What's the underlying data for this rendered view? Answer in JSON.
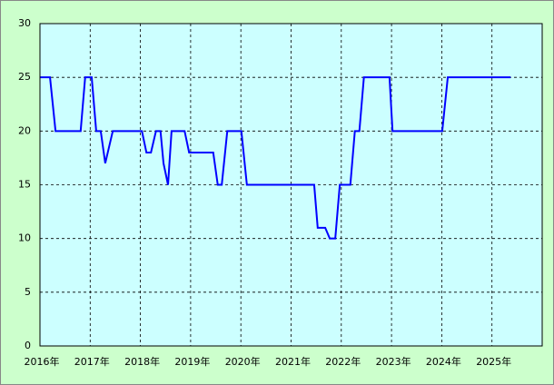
{
  "chart_data": {
    "type": "line",
    "x": [
      2016,
      2016.2,
      2016.31,
      2016.81,
      2016.9,
      2017.03,
      2017.12,
      2017.21,
      2017.3,
      2017.45,
      2018.03,
      2018.12,
      2018.21,
      2018.31,
      2018.4,
      2018.46,
      2018.55,
      2018.62,
      2018.88,
      2018.97,
      2019.45,
      2019.54,
      2019.62,
      2019.73,
      2020.01,
      2020.12,
      2021.46,
      2021.53,
      2021.68,
      2021.77,
      2021.88,
      2021.97,
      2022.18,
      2022.27,
      2022.36,
      2022.45,
      2022.96,
      2023.02,
      2024.01,
      2024.12,
      2025.37
    ],
    "values": [
      25,
      25,
      20,
      20,
      25,
      25,
      20,
      20,
      17,
      20,
      20,
      18,
      18,
      20,
      20,
      17,
      15,
      20,
      20,
      18,
      18,
      15,
      15,
      20,
      20,
      15,
      15,
      11,
      11,
      10,
      10,
      15,
      15,
      20,
      20,
      25,
      25,
      20,
      20,
      25,
      25
    ],
    "color": "#0000ff",
    "xlim": [
      2016,
      2026
    ],
    "xticks": [
      {
        "value": 2016,
        "label": "2016年"
      },
      {
        "value": 2017,
        "label": "2017年"
      },
      {
        "value": 2018,
        "label": "2018年"
      },
      {
        "value": 2019,
        "label": "2019年"
      },
      {
        "value": 2020,
        "label": "2020年"
      },
      {
        "value": 2021,
        "label": "2021年"
      },
      {
        "value": 2022,
        "label": "2022年"
      },
      {
        "value": 2023,
        "label": "2023年"
      },
      {
        "value": 2024,
        "label": "2024年"
      },
      {
        "value": 2025,
        "label": "2025年"
      }
    ],
    "ylim": [
      0,
      30
    ],
    "yticks": [
      0,
      5,
      10,
      15,
      20,
      25,
      30
    ],
    "grid": true
  }
}
